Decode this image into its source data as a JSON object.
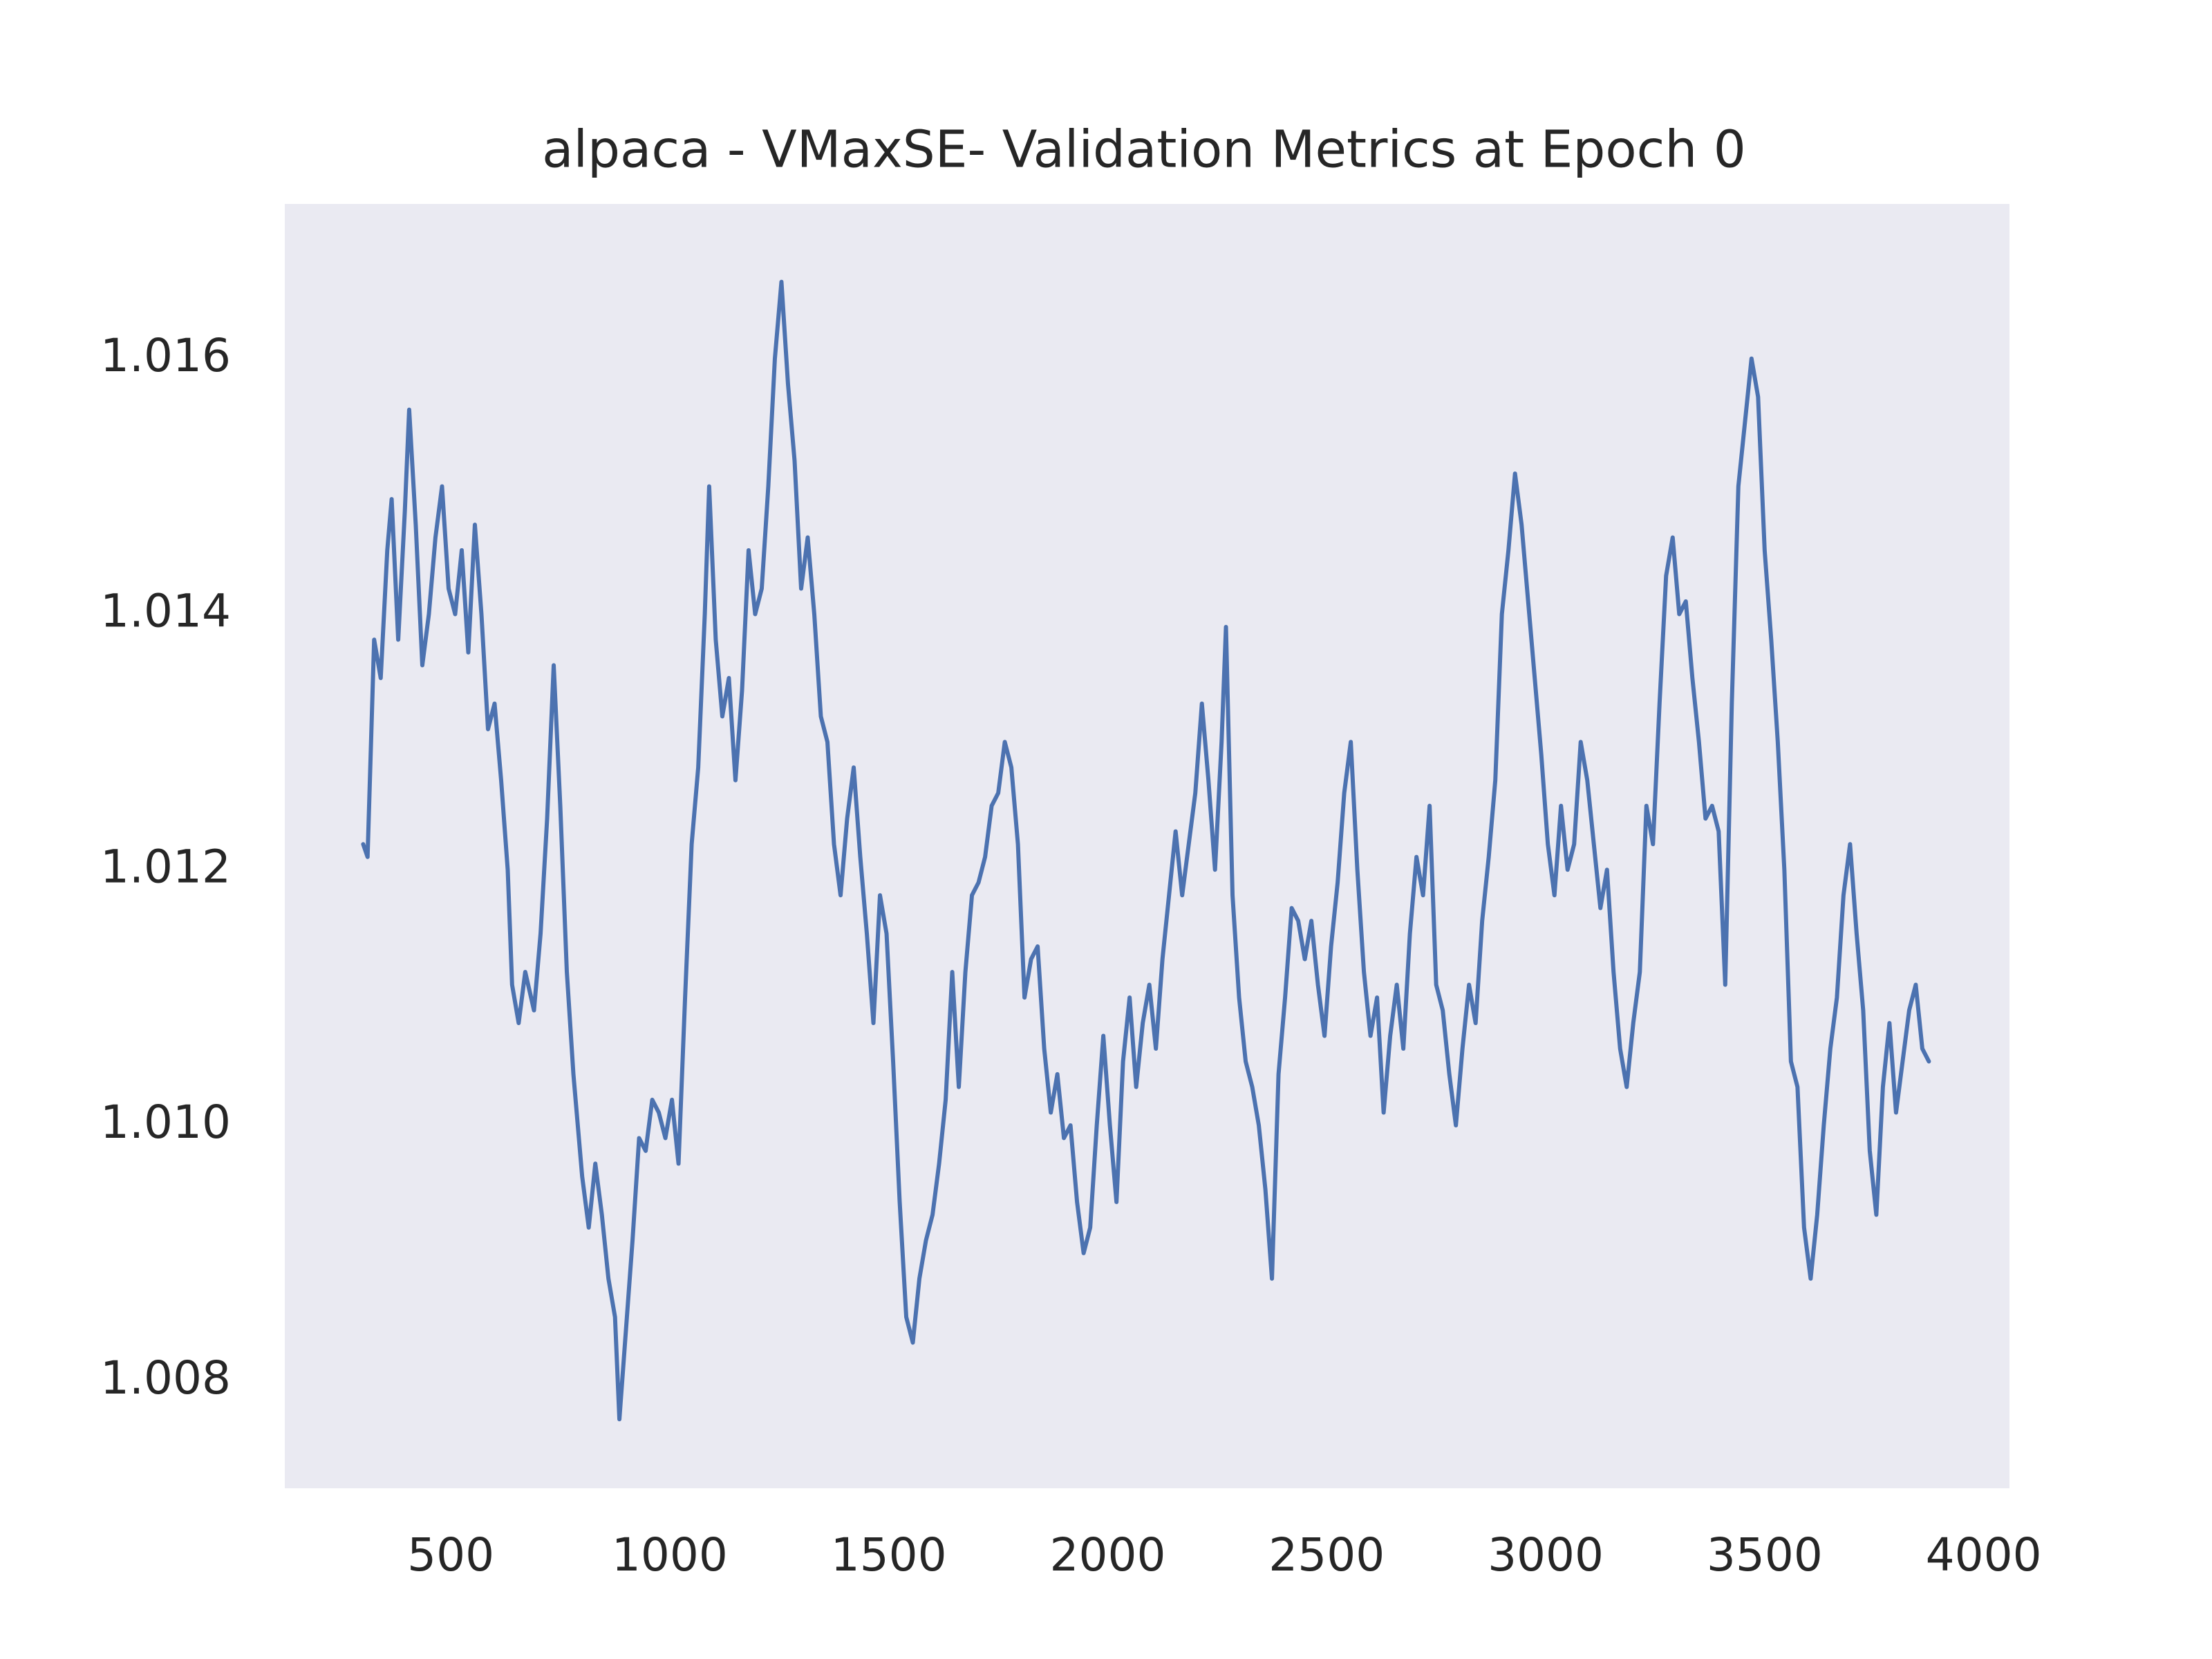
{
  "chart_data": {
    "type": "line",
    "title": "alpaca - VMaxSE- Validation Metrics at Epoch 0",
    "x": [
      300,
      310,
      325,
      340,
      355,
      365,
      380,
      395,
      405,
      420,
      435,
      450,
      465,
      480,
      495,
      510,
      525,
      540,
      555,
      570,
      585,
      600,
      615,
      630,
      640,
      655,
      670,
      690,
      705,
      720,
      735,
      750,
      765,
      780,
      800,
      815,
      830,
      845,
      860,
      875,
      885,
      900,
      915,
      930,
      945,
      960,
      975,
      990,
      1005,
      1020,
      1035,
      1050,
      1065,
      1080,
      1090,
      1105,
      1120,
      1135,
      1150,
      1165,
      1180,
      1195,
      1210,
      1225,
      1240,
      1255,
      1270,
      1285,
      1300,
      1315,
      1330,
      1345,
      1360,
      1375,
      1390,
      1405,
      1420,
      1435,
      1450,
      1465,
      1480,
      1495,
      1510,
      1525,
      1540,
      1555,
      1570,
      1585,
      1600,
      1615,
      1630,
      1645,
      1660,
      1675,
      1690,
      1705,
      1720,
      1735,
      1750,
      1765,
      1780,
      1795,
      1810,
      1825,
      1840,
      1855,
      1870,
      1885,
      1900,
      1915,
      1930,
      1945,
      1960,
      1975,
      1990,
      2005,
      2020,
      2035,
      2050,
      2065,
      2080,
      2095,
      2110,
      2125,
      2140,
      2155,
      2170,
      2185,
      2200,
      2215,
      2230,
      2245,
      2260,
      2270,
      2285,
      2300,
      2315,
      2330,
      2345,
      2360,
      2375,
      2390,
      2405,
      2420,
      2435,
      2450,
      2465,
      2480,
      2495,
      2510,
      2525,
      2540,
      2555,
      2570,
      2585,
      2600,
      2615,
      2630,
      2645,
      2660,
      2675,
      2690,
      2705,
      2720,
      2735,
      2750,
      2765,
      2780,
      2795,
      2810,
      2825,
      2840,
      2855,
      2870,
      2885,
      2900,
      2915,
      2930,
      2945,
      2960,
      2975,
      2990,
      3005,
      3020,
      3035,
      3050,
      3065,
      3080,
      3095,
      3110,
      3125,
      3140,
      3155,
      3170,
      3185,
      3200,
      3215,
      3230,
      3245,
      3260,
      3275,
      3290,
      3305,
      3320,
      3335,
      3350,
      3365,
      3380,
      3395,
      3410,
      3425,
      3440,
      3455,
      3470,
      3485,
      3500,
      3515,
      3530,
      3545,
      3560,
      3575,
      3590,
      3605,
      3620,
      3635,
      3650,
      3665,
      3680,
      3695,
      3710,
      3725,
      3740,
      3755,
      3770,
      3785,
      3800,
      3815,
      3830,
      3845,
      3860,
      3875
    ],
    "series": [
      {
        "color": "#4c72b0",
        "values": [
          1.0122,
          1.0121,
          1.0138,
          1.0135,
          1.0145,
          1.0149,
          1.0138,
          1.0148,
          1.0156,
          1.0147,
          1.0136,
          1.014,
          1.0146,
          1.015,
          1.0142,
          1.014,
          1.0145,
          1.0137,
          1.0147,
          1.014,
          1.0131,
          1.0133,
          1.0127,
          1.012,
          1.0111,
          1.0108,
          1.0112,
          1.0109,
          1.0115,
          1.0124,
          1.0136,
          1.0125,
          1.0112,
          1.0104,
          1.0096,
          1.0092,
          1.0097,
          1.0093,
          1.0088,
          1.0085,
          1.0077,
          1.0084,
          1.0091,
          1.0099,
          1.0098,
          1.0102,
          1.0101,
          1.0099,
          1.0102,
          1.0097,
          1.011,
          1.0122,
          1.0128,
          1.014,
          1.015,
          1.0138,
          1.0132,
          1.0135,
          1.0127,
          1.0134,
          1.0145,
          1.014,
          1.0142,
          1.015,
          1.016,
          1.0166,
          1.0158,
          1.0152,
          1.0142,
          1.0146,
          1.014,
          1.0132,
          1.013,
          1.0122,
          1.0118,
          1.0124,
          1.0128,
          1.0121,
          1.0115,
          1.0108,
          1.0118,
          1.0115,
          1.0105,
          1.0094,
          1.0085,
          1.0083,
          1.0088,
          1.0091,
          1.0093,
          1.0097,
          1.0102,
          1.0112,
          1.0103,
          1.0112,
          1.0118,
          1.0119,
          1.0121,
          1.0125,
          1.0126,
          1.013,
          1.0128,
          1.0122,
          1.011,
          1.0113,
          1.0114,
          1.0106,
          1.0101,
          1.0104,
          1.0099,
          1.01,
          1.0094,
          1.009,
          1.0092,
          1.01,
          1.0107,
          1.01,
          1.0094,
          1.0105,
          1.011,
          1.0103,
          1.0108,
          1.0111,
          1.0106,
          1.0113,
          1.0118,
          1.0123,
          1.0118,
          1.0122,
          1.0126,
          1.0133,
          1.0127,
          1.012,
          1.013,
          1.0139,
          1.0118,
          1.011,
          1.0105,
          1.0103,
          1.01,
          1.0095,
          1.0088,
          1.0104,
          1.011,
          1.0117,
          1.0116,
          1.0113,
          1.0116,
          1.0111,
          1.0107,
          1.0114,
          1.0119,
          1.0126,
          1.013,
          1.012,
          1.0112,
          1.0107,
          1.011,
          1.0101,
          1.0107,
          1.0111,
          1.0106,
          1.0115,
          1.0121,
          1.0118,
          1.0125,
          1.0111,
          1.0109,
          1.0104,
          1.01,
          1.0106,
          1.0111,
          1.0108,
          1.0116,
          1.0121,
          1.0127,
          1.014,
          1.0145,
          1.0151,
          1.0147,
          1.0141,
          1.0135,
          1.0129,
          1.0122,
          1.0118,
          1.0125,
          1.012,
          1.0122,
          1.013,
          1.0127,
          1.0122,
          1.0117,
          1.012,
          1.0112,
          1.0106,
          1.0103,
          1.0108,
          1.0112,
          1.0125,
          1.0122,
          1.0133,
          1.0143,
          1.0146,
          1.014,
          1.0141,
          1.0135,
          1.013,
          1.0124,
          1.0125,
          1.0123,
          1.0111,
          1.0133,
          1.015,
          1.0155,
          1.016,
          1.0157,
          1.0145,
          1.0138,
          1.013,
          1.012,
          1.0105,
          1.0103,
          1.0092,
          1.0088,
          1.0093,
          1.01,
          1.0106,
          1.011,
          1.0118,
          1.0122,
          1.0115,
          1.0109,
          1.0098,
          1.0093,
          1.0103,
          1.0108,
          1.0101,
          1.0105,
          1.0109,
          1.0111,
          1.0106,
          1.0105
        ]
      }
    ],
    "xlim": [
      121,
      4059
    ],
    "ylim": [
      1.00716,
      1.01721
    ],
    "xticks": [
      500,
      1000,
      1500,
      2000,
      2500,
      3000,
      3500,
      4000
    ],
    "yticks": [
      1.008,
      {
        "value": 1.01,
        "label": "1.010"
      },
      1.012,
      1.014,
      1.016
    ],
    "grid": false,
    "background": "#eaeaf2"
  }
}
